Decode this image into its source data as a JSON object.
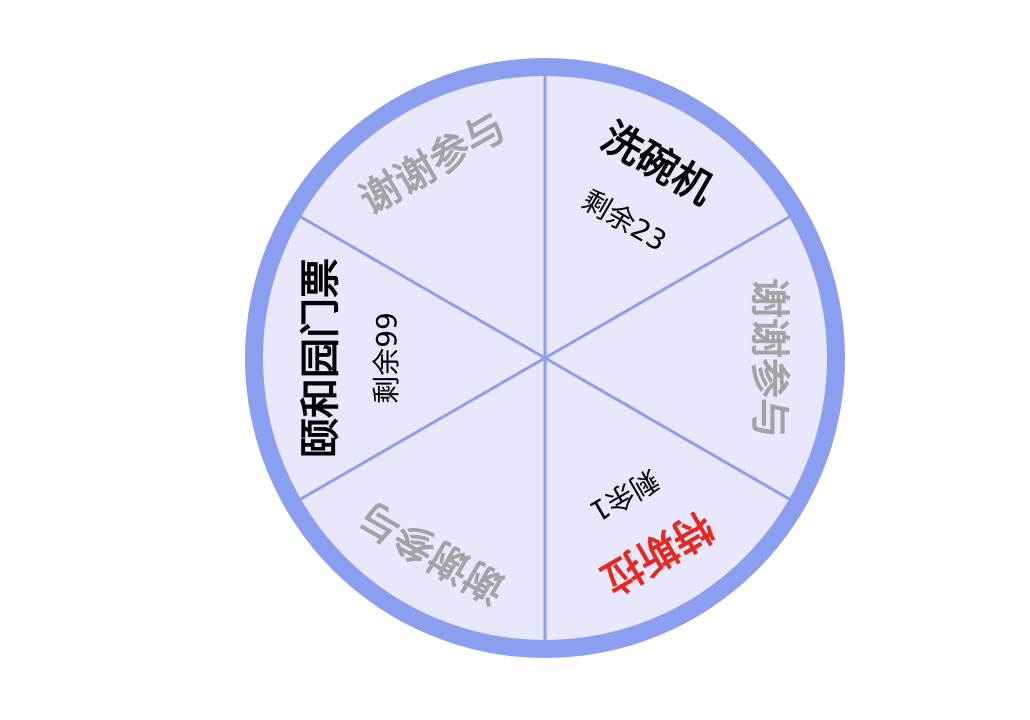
{
  "wheel": {
    "colors": {
      "rim": "#8b9ef0",
      "face": "#e8e7fb",
      "divider": "#8b9ef0",
      "prize_text": "#000000",
      "thanks_text": "#a3a3a3",
      "grand_prize_text": "#e8281e"
    },
    "segments": [
      {
        "label": "洗碗机",
        "remaining": "剩余23",
        "style": "prize"
      },
      {
        "label": "谢谢参与",
        "remaining": "",
        "style": "thanks"
      },
      {
        "label": "特斯拉",
        "remaining": "剩余1",
        "style": "grand"
      },
      {
        "label": "谢谢参与",
        "remaining": "",
        "style": "thanks"
      },
      {
        "label": "颐和园门票",
        "remaining": "剩余99",
        "style": "prize"
      },
      {
        "label": "谢谢参与",
        "remaining": "",
        "style": "thanks"
      }
    ]
  }
}
